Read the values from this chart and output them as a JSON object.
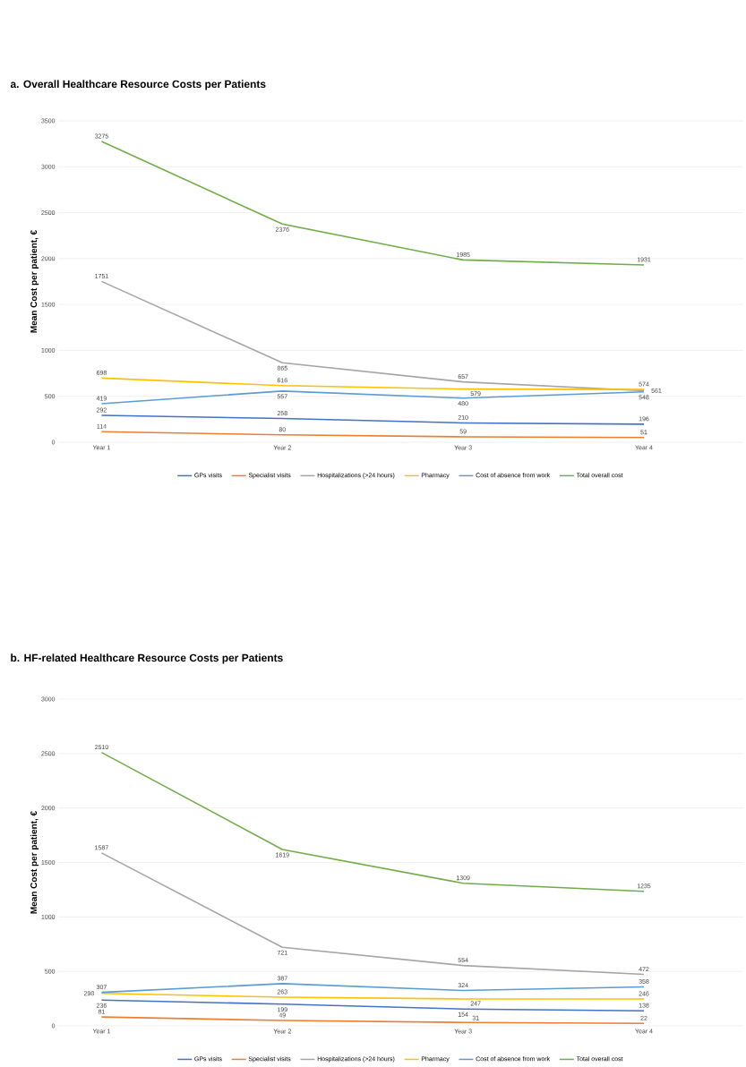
{
  "chart_data": [
    {
      "type": "line",
      "title": "a. Overall Healthcare Resource Costs per Patients",
      "ylabel": "Mean Cost per patient, €",
      "categories": [
        "Year 1",
        "Year 2",
        "Year 3",
        "Year 4"
      ],
      "series": [
        {
          "name": "GPs visits",
          "color": "#4472c4",
          "values": [
            292,
            258,
            210,
            196
          ]
        },
        {
          "name": "Specialist visits",
          "color": "#ed7d31",
          "values": [
            114,
            80,
            59,
            51
          ]
        },
        {
          "name": "Hospitalizations (>24 hours)",
          "color": "#a5a5a5",
          "values": [
            1751,
            865,
            657,
            561
          ]
        },
        {
          "name": "Pharmacy",
          "color": "#ffc000",
          "values": [
            698,
            616,
            579,
            574
          ]
        },
        {
          "name": "Cost of absence from work",
          "color": "#5b9bd5",
          "values": [
            419,
            557,
            480,
            548
          ]
        },
        {
          "name": "Total overall cost",
          "color": "#70ad47",
          "values": [
            3275,
            2376,
            1985,
            1931
          ]
        }
      ],
      "ylim": [
        0,
        3500
      ],
      "yticks": [
        0,
        500,
        1000,
        1500,
        2000,
        2500,
        3000,
        3500
      ],
      "grid": "y",
      "legend": "bottom",
      "data_labels": true,
      "marker": "none",
      "line_style": "solid"
    },
    {
      "type": "line",
      "title": "b. HF-related Healthcare Resource Costs per Patients",
      "ylabel": "Mean Cost per patient, €",
      "categories": [
        "Year 1",
        "Year 2",
        "Year 3",
        "Year 4"
      ],
      "series": [
        {
          "name": "GPs visits",
          "color": "#4472c4",
          "values": [
            236,
            199,
            154,
            138
          ]
        },
        {
          "name": "Specialist visits",
          "color": "#ed7d31",
          "values": [
            81,
            49,
            31,
            22
          ]
        },
        {
          "name": "Hospitalizations (>24 hours)",
          "color": "#a5a5a5",
          "values": [
            1587,
            721,
            554,
            472
          ]
        },
        {
          "name": "Pharmacy",
          "color": "#ffc000",
          "values": [
            298,
            263,
            247,
            246
          ]
        },
        {
          "name": "Cost of absence from work",
          "color": "#5b9bd5",
          "values": [
            307,
            387,
            324,
            358
          ]
        },
        {
          "name": "Total overall cost",
          "color": "#70ad47",
          "values": [
            2510,
            1619,
            1309,
            1235
          ]
        }
      ],
      "ylim": [
        0,
        3000
      ],
      "yticks": [
        0,
        500,
        1000,
        1500,
        2000,
        2500,
        3000
      ],
      "grid": "y",
      "legend": "bottom",
      "data_labels": true,
      "marker": "none",
      "line_style": "solid"
    }
  ]
}
